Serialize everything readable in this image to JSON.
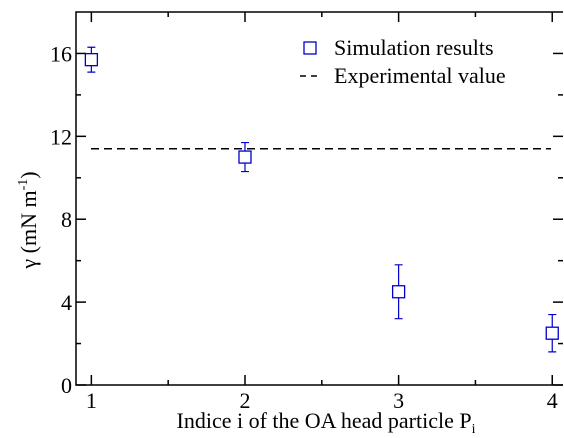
{
  "chart_data": {
    "type": "scatter",
    "x_label": "Indice i of the OA head particle P",
    "x_label_sub": "i",
    "y_label": "γ (mN m",
    "y_label_sup": "-1",
    "y_label_end": ")",
    "xlim": [
      0.9,
      4.07
    ],
    "ylim": [
      0,
      18
    ],
    "xticks": [
      1,
      2,
      3,
      4
    ],
    "xminor": [
      1.5,
      2.5,
      3.5
    ],
    "yticks": [
      0,
      4,
      8,
      12,
      16
    ],
    "yminor": [
      2,
      6,
      10,
      14
    ],
    "legend": "top-right",
    "series": [
      {
        "name": "Simulation results",
        "color": "#0000cc",
        "marker": "square",
        "x": [
          1,
          2,
          3,
          4
        ],
        "values": [
          15.7,
          11.0,
          4.5,
          2.5
        ],
        "errors": [
          0.6,
          0.7,
          1.3,
          0.9
        ]
      }
    ],
    "reference": {
      "name": "Experimental value",
      "value": 11.4,
      "color": "#000000",
      "style": "dashed"
    }
  }
}
